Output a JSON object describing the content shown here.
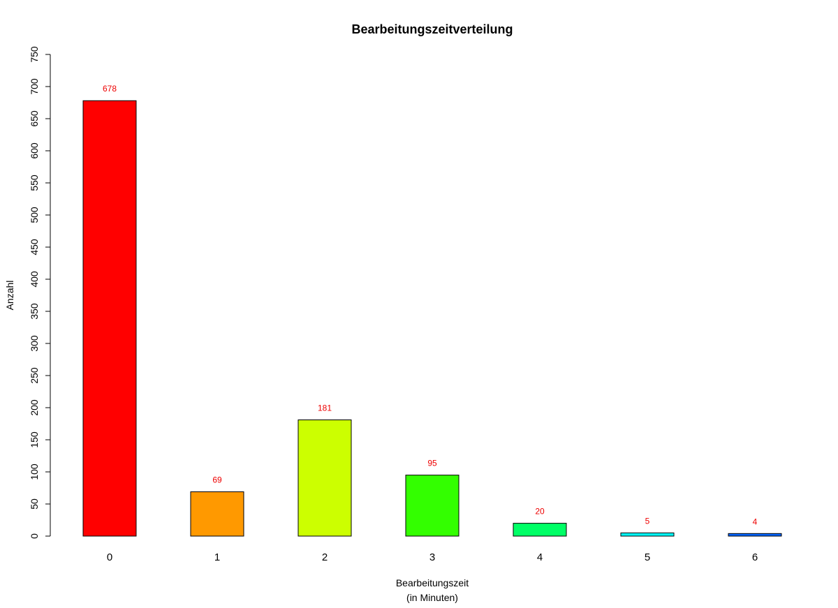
{
  "chart_data": {
    "type": "bar",
    "title": "Bearbeitungszeitverteilung",
    "xlabel_lines": [
      "Bearbeitungszeit",
      "(in Minuten)"
    ],
    "ylabel": "Anzahl",
    "categories": [
      "0",
      "1",
      "2",
      "3",
      "4",
      "5",
      "6"
    ],
    "values": [
      678,
      69,
      181,
      95,
      20,
      5,
      4
    ],
    "data_labels": [
      "678",
      "69",
      "181",
      "95",
      "20",
      "5",
      "4"
    ],
    "colors": [
      "#ff0000",
      "#ff9900",
      "#ccff00",
      "#33ff00",
      "#00ff66",
      "#00ffff",
      "#0066ff"
    ],
    "bar_border_color": "#000000",
    "data_label_color": "#ee0000",
    "ylim": [
      0,
      750
    ],
    "yticks": [
      0,
      50,
      100,
      150,
      200,
      250,
      300,
      350,
      400,
      450,
      500,
      550,
      600,
      650,
      700,
      750
    ],
    "ytick_labels": [
      "0",
      "50",
      "100",
      "150",
      "200",
      "250",
      "300",
      "350",
      "400",
      "450",
      "500",
      "550",
      "600",
      "650",
      "700",
      "750"
    ],
    "grid": false,
    "legend": "none"
  }
}
